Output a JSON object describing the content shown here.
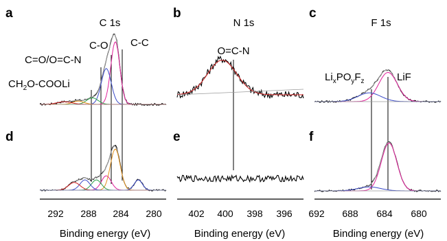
{
  "chart_data": [
    {
      "id": "a",
      "type": "line",
      "panel_label": "a",
      "title": "C 1s",
      "xlim": [
        294,
        278.6
      ],
      "reversed": true,
      "peak_labels": [
        "C-C",
        "C-O",
        "C=O/O=C-N",
        "CH2O-COOLi"
      ],
      "series": [
        {
          "color": "#000000",
          "peaks": [
            [
              284.8,
              0.96,
              0.55
            ],
            [
              285.9,
              0.55,
              0.6
            ],
            [
              287.6,
              0.1,
              0.7
            ],
            [
              289.3,
              0.05,
              0.7
            ],
            [
              291.0,
              0.04,
              0.9
            ]
          ]
        },
        {
          "color": "#a0a0a0",
          "peaks": [
            [
              284.8,
              0.95,
              0.55
            ],
            [
              285.9,
              0.55,
              0.6
            ],
            [
              287.6,
              0.1,
              0.7
            ],
            [
              289.3,
              0.05,
              0.7
            ],
            [
              291.0,
              0.04,
              0.9
            ]
          ]
        },
        {
          "color": "#e0209a",
          "peaks": [
            [
              284.8,
              0.96,
              0.55
            ]
          ]
        },
        {
          "color": "#3b4bc8",
          "peaks": [
            [
              285.9,
              0.55,
              0.6
            ]
          ]
        },
        {
          "color": "#2aa04a",
          "peaks": [
            [
              287.6,
              0.1,
              0.7
            ]
          ]
        },
        {
          "color": "#e0901a",
          "peaks": [
            [
              289.3,
              0.05,
              0.7
            ]
          ]
        },
        {
          "color": "#d02020",
          "peaks": [
            [
              291.0,
              0.04,
              0.9
            ]
          ]
        }
      ]
    },
    {
      "id": "b",
      "type": "line",
      "panel_label": "b",
      "title": "N 1s",
      "xlim": [
        403.3,
        394.6
      ],
      "reversed": true,
      "peak_labels": [
        "O=C-N"
      ],
      "series": [
        {
          "color": "#000000",
          "peaks": [
            [
              400.2,
              0.55,
              1.0
            ]
          ]
        },
        {
          "color": "#a0a0a0",
          "peaks": [
            [
              400.2,
              0.53,
              1.0
            ]
          ]
        },
        {
          "color": "#d02020",
          "peaks": [
            [
              400.2,
              0.53,
              1.0
            ]
          ]
        }
      ]
    },
    {
      "id": "c",
      "type": "line",
      "panel_label": "c",
      "title": "F 1s",
      "xlim": [
        692,
        679.8
      ],
      "reversed": true,
      "peak_labels": [
        "LixPOyFz",
        "LiF"
      ],
      "series": [
        {
          "color": "#000000",
          "peaks": [
            [
              684.9,
              0.5,
              0.9
            ],
            [
              686.7,
              0.15,
              1.1
            ]
          ]
        },
        {
          "color": "#a0a0a0",
          "peaks": [
            [
              684.9,
              0.5,
              0.9
            ],
            [
              686.7,
              0.15,
              1.1
            ]
          ]
        },
        {
          "color": "#e0209a",
          "peaks": [
            [
              684.9,
              0.5,
              0.9
            ]
          ]
        },
        {
          "color": "#3b4bc8",
          "peaks": [
            [
              686.7,
              0.15,
              1.1
            ]
          ]
        }
      ]
    },
    {
      "id": "d",
      "type": "line",
      "panel_label": "d",
      "xlim": [
        294,
        278.6
      ],
      "reversed": true,
      "xticks": [
        292,
        288,
        284,
        280
      ],
      "xlabel": "Binding energy (eV)",
      "series": [
        {
          "color": "#000000",
          "peaks": [
            [
              284.8,
              0.82,
              0.6
            ],
            [
              285.9,
              0.28,
              0.6
            ],
            [
              287.1,
              0.2,
              0.6
            ],
            [
              288.5,
              0.2,
              0.6
            ],
            [
              289.8,
              0.15,
              0.7
            ],
            [
              282.0,
              0.2,
              0.5
            ]
          ]
        },
        {
          "color": "#a0a0a0",
          "peaks": [
            [
              284.8,
              0.8,
              0.6
            ],
            [
              285.9,
              0.28,
              0.6
            ],
            [
              287.1,
              0.2,
              0.6
            ],
            [
              288.5,
              0.2,
              0.6
            ],
            [
              289.8,
              0.15,
              0.7
            ],
            [
              282.0,
              0.2,
              0.5
            ]
          ]
        },
        {
          "color": "#e0209a",
          "peaks": [
            [
              285.9,
              0.28,
              0.6
            ]
          ]
        },
        {
          "color": "#e0901a",
          "peaks": [
            [
              284.8,
              0.8,
              0.6
            ]
          ]
        },
        {
          "color": "#2aa04a",
          "peaks": [
            [
              287.1,
              0.2,
              0.6
            ]
          ]
        },
        {
          "color": "#3b4bc8",
          "peaks": [
            [
              288.5,
              0.2,
              0.6
            ]
          ]
        },
        {
          "color": "#d02020",
          "peaks": [
            [
              289.8,
              0.15,
              0.7
            ]
          ]
        },
        {
          "color": "#3b4bc8",
          "peaks": [
            [
              282.0,
              0.2,
              0.5
            ]
          ]
        }
      ]
    },
    {
      "id": "e",
      "type": "line",
      "panel_label": "e",
      "xlim": [
        403.3,
        394.6
      ],
      "reversed": true,
      "xticks": [
        402,
        400,
        398,
        396
      ],
      "xlabel": "Binding energy (eV)",
      "series": [
        {
          "color": "#000000",
          "peaks": []
        }
      ]
    },
    {
      "id": "f",
      "type": "line",
      "panel_label": "f",
      "xlim": [
        692,
        679.8
      ],
      "reversed": true,
      "xticks": [
        692,
        688,
        684,
        680
      ],
      "xlabel": "Binding energy (eV)",
      "series": [
        {
          "color": "#000000",
          "peaks": [
            [
              684.8,
              0.86,
              0.75
            ],
            [
              686.7,
              0.07,
              1.1
            ]
          ]
        },
        {
          "color": "#a0a0a0",
          "peaks": [
            [
              684.8,
              0.85,
              0.75
            ],
            [
              686.7,
              0.07,
              1.1
            ]
          ]
        },
        {
          "color": "#e0209a",
          "peaks": [
            [
              684.8,
              0.85,
              0.75
            ]
          ]
        },
        {
          "color": "#3b4bc8",
          "peaks": [
            [
              686.7,
              0.07,
              1.1
            ]
          ]
        }
      ]
    }
  ]
}
